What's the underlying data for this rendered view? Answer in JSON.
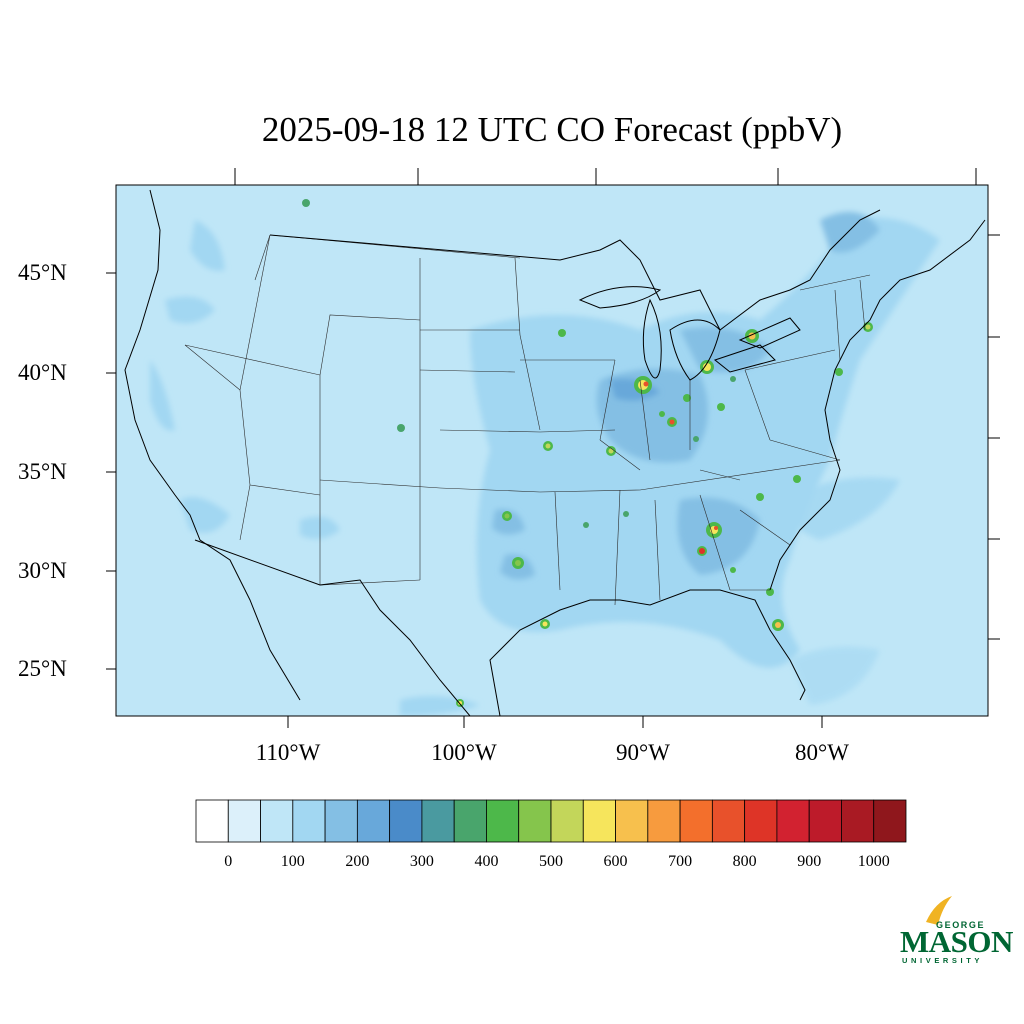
{
  "title": "2025-09-18 12 UTC CO Forecast (ppbV)",
  "lat_labels": [
    "45°N",
    "40°N",
    "35°N",
    "30°N",
    "25°N"
  ],
  "lon_labels": [
    "110°W",
    "100°W",
    "90°W",
    "80°W"
  ],
  "colorbar": {
    "labels": [
      "0",
      "100",
      "200",
      "300",
      "400",
      "500",
      "600",
      "700",
      "800",
      "900",
      "1000"
    ],
    "colors": [
      "#ffffff",
      "#dcf0fa",
      "#bfe6f7",
      "#a2d7f2",
      "#84bfe4",
      "#68a8da",
      "#4a8bc9",
      "#4a9aa0",
      "#49a56c",
      "#4db84a",
      "#85c54c",
      "#c3d65a",
      "#f6e55c",
      "#f7c04d",
      "#f79b3e",
      "#f36f2c",
      "#e8512b",
      "#de3427",
      "#d22230",
      "#bd1b2a",
      "#a91a23",
      "#8f171c"
    ]
  },
  "map": {
    "background_color": "#bfe6f7",
    "enhanced_color": "#a2d7f2",
    "high_color": "#84bfe4"
  },
  "logo": {
    "line1": "GEORGE",
    "line2": "MASON",
    "line3": "UNIVERSITY",
    "color": "#006633",
    "accent_color": "#f0b323"
  }
}
